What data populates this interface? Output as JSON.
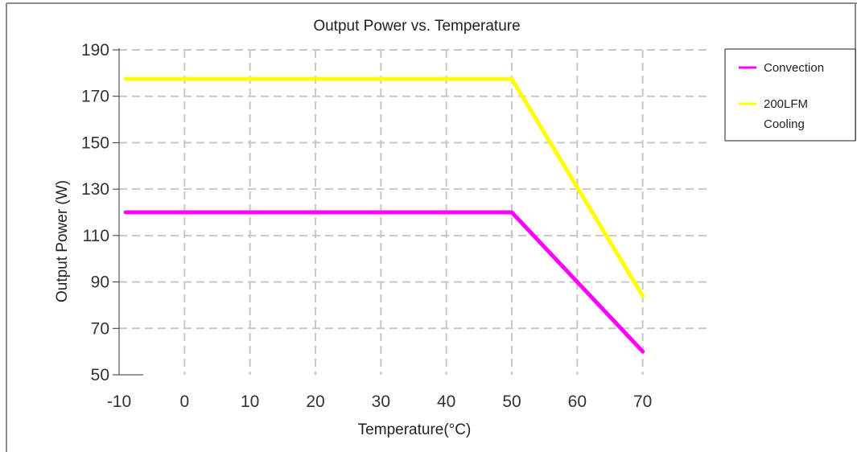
{
  "chart_data": {
    "type": "line",
    "title": "Output Power vs. Temperature",
    "xlabel": "Temperature(°C)",
    "ylabel": "Output Power (W)",
    "xlim": [
      -10,
      80
    ],
    "ylim": [
      50,
      190
    ],
    "x_ticks": [
      -10,
      0,
      10,
      20,
      30,
      40,
      50,
      60,
      70
    ],
    "y_ticks": [
      50,
      70,
      90,
      110,
      130,
      150,
      170,
      190
    ],
    "grid": true,
    "legend_position": "right",
    "series": [
      {
        "name": "Convection",
        "color": "#ff00ff",
        "points": [
          [
            -9,
            120
          ],
          [
            50,
            120
          ],
          [
            70,
            60
          ]
        ]
      },
      {
        "name": "200LFM Cooling",
        "color": "#ffff00",
        "points": [
          [
            -9,
            177.5
          ],
          [
            50,
            177.5
          ],
          [
            70,
            84
          ]
        ]
      }
    ]
  }
}
